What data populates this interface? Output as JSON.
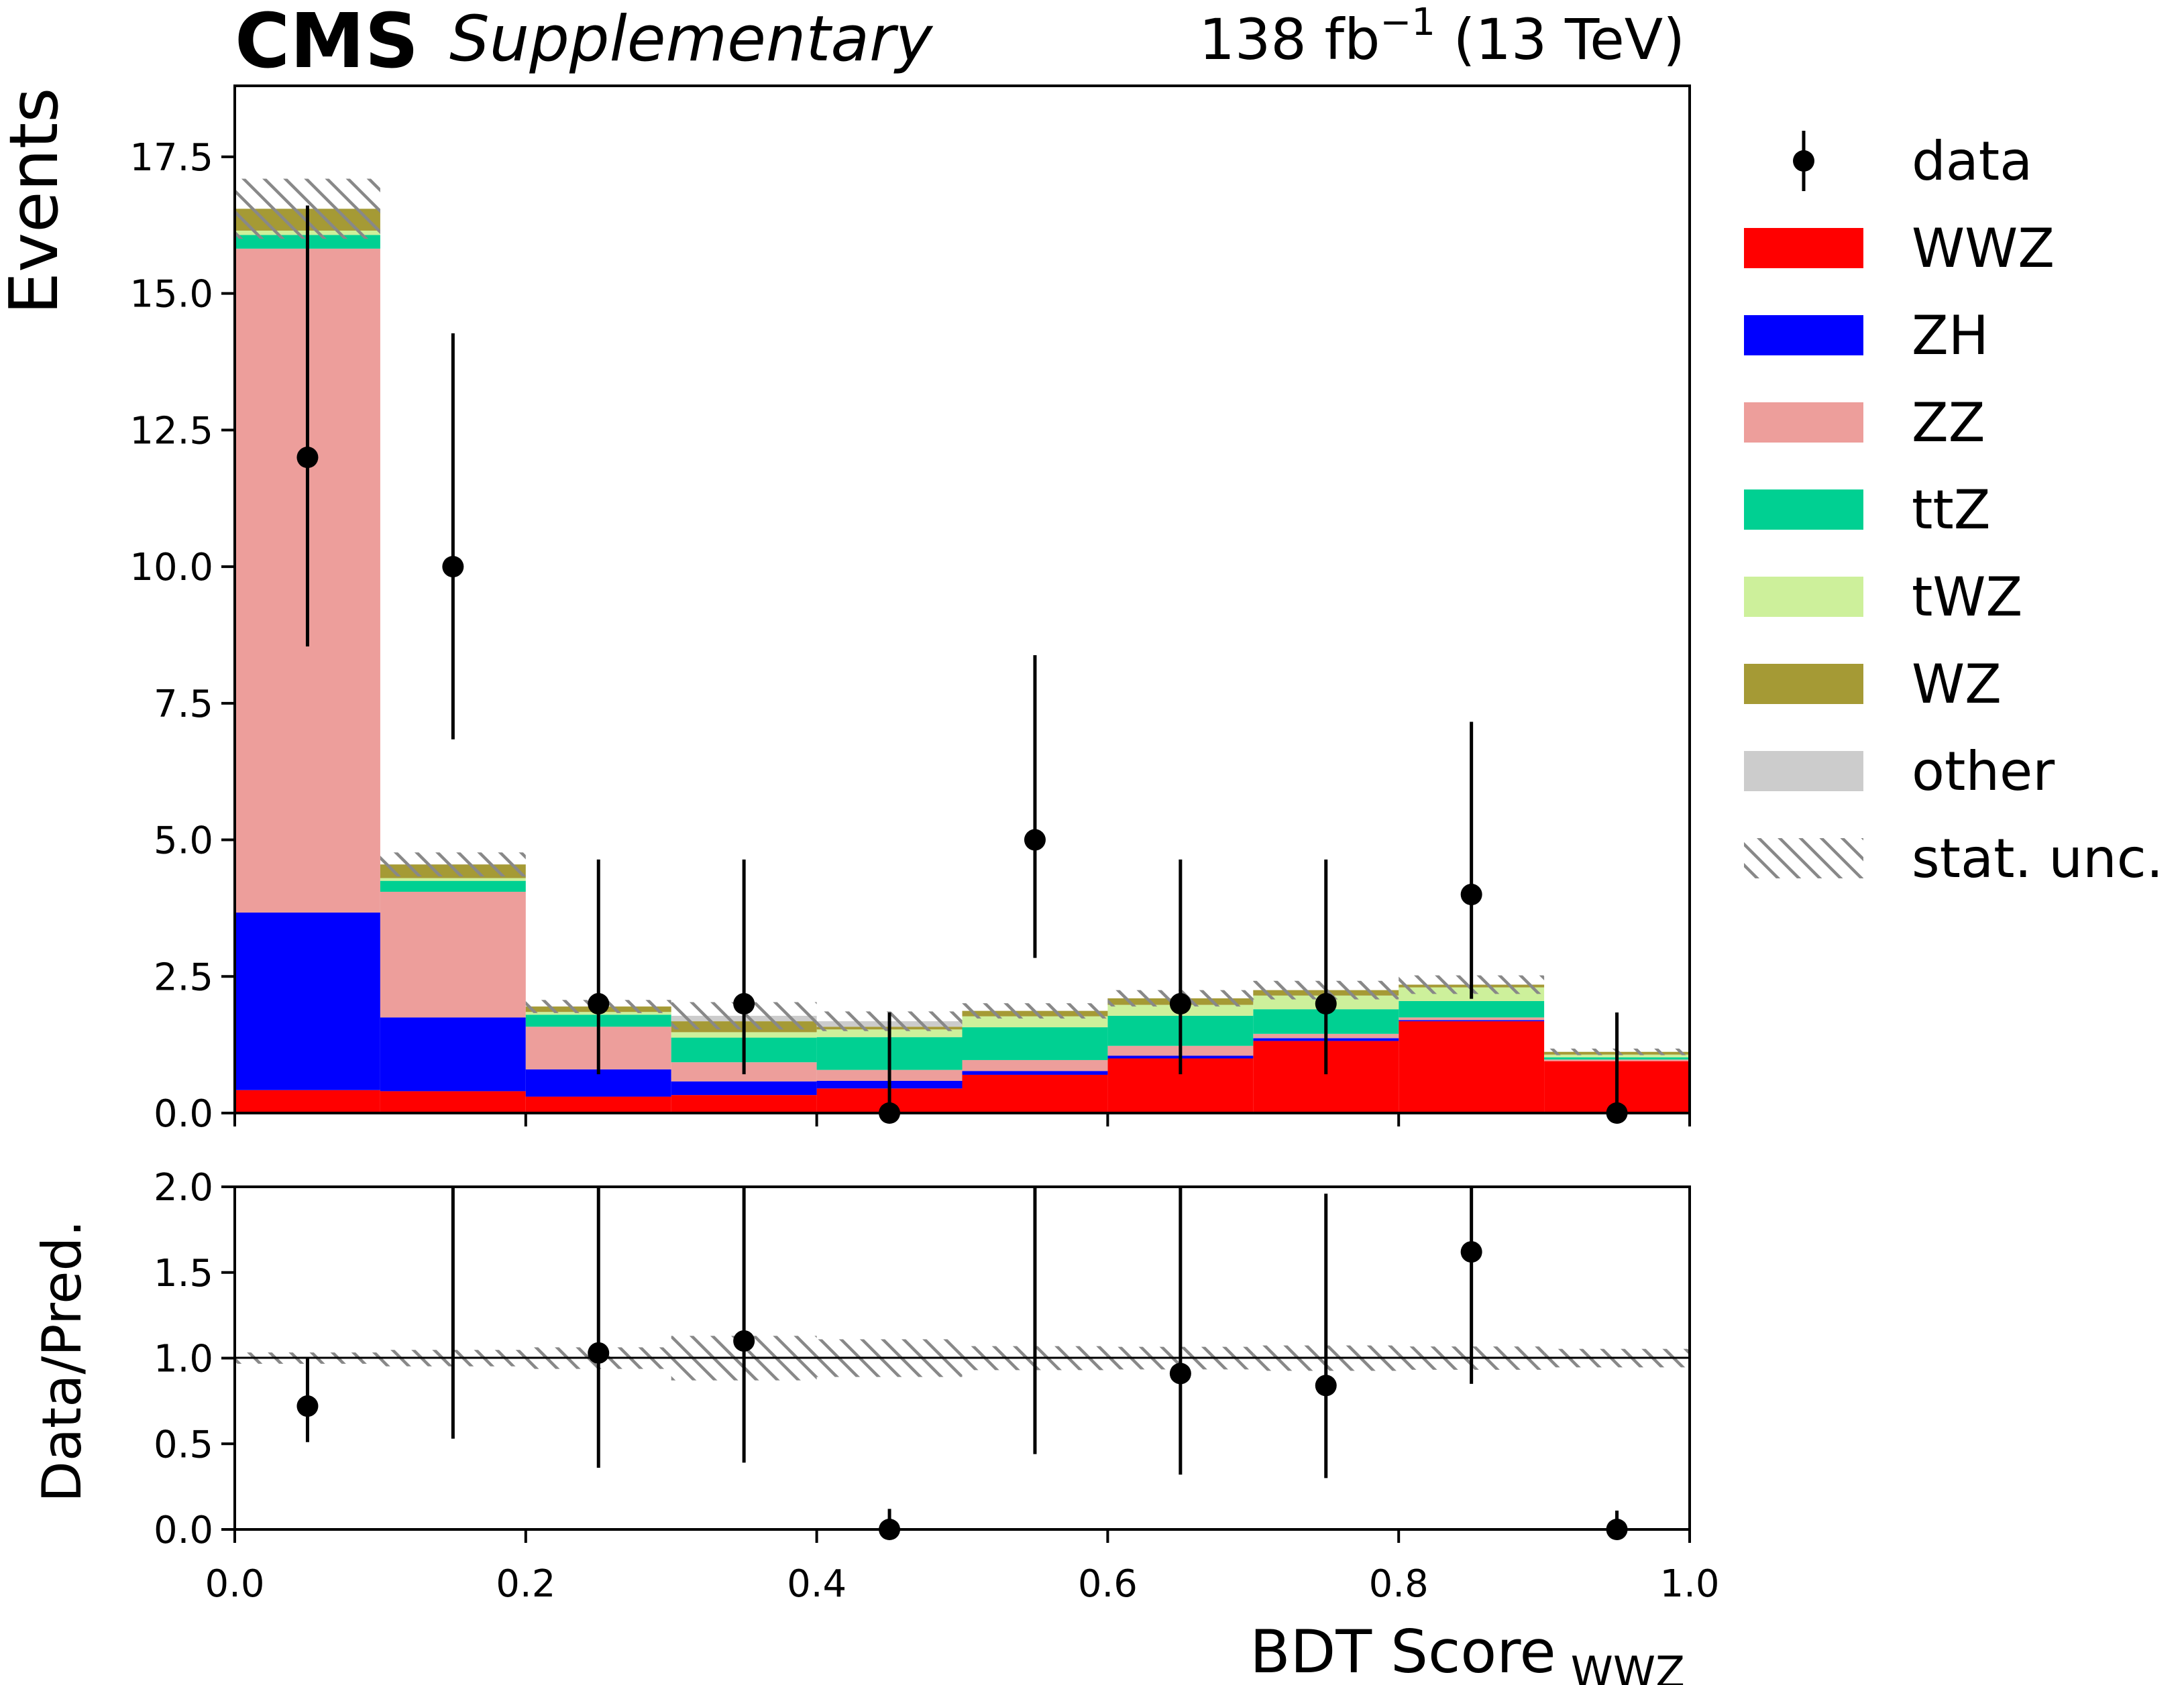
{
  "chart_data": {
    "type": "bar",
    "stacked": true,
    "experiment": "CMS",
    "label": "Supplementary",
    "lumi_label": {
      "prefix": "138 fb",
      "exponent": "−1",
      "suffix": " (13 TeV)"
    },
    "xlabel": {
      "main": "BDT Score",
      "sub": "WWZ"
    },
    "ylabel": "Events",
    "ratio_ylabel": "Data/Pred.",
    "xlim": [
      0.0,
      1.0
    ],
    "ylim": [
      0.0,
      18.8
    ],
    "ratio_ylim": [
      0.0,
      2.0
    ],
    "x_ticks": [
      "0.0",
      "0.2",
      "0.4",
      "0.6",
      "0.8",
      "1.0"
    ],
    "y_ticks": [
      "0.0",
      "2.5",
      "5.0",
      "7.5",
      "10.0",
      "12.5",
      "15.0",
      "17.5"
    ],
    "ratio_y_ticks": [
      "0.0",
      "0.5",
      "1.0",
      "1.5",
      "2.0"
    ],
    "bin_edges": [
      0.0,
      0.1,
      0.2,
      0.3,
      0.4,
      0.5,
      0.6,
      0.7,
      0.8,
      0.9,
      1.0
    ],
    "series": [
      {
        "name": "WWZ",
        "color": "#ff0000",
        "values": [
          0.42,
          0.4,
          0.3,
          0.33,
          0.45,
          0.7,
          1.0,
          1.32,
          1.68,
          0.95
        ]
      },
      {
        "name": "ZH",
        "color": "#0000ff",
        "values": [
          3.25,
          1.35,
          0.5,
          0.25,
          0.14,
          0.07,
          0.05,
          0.05,
          0.02,
          0.0
        ]
      },
      {
        "name": "ZZ",
        "color": "#ed9e9b",
        "values": [
          12.15,
          2.3,
          0.78,
          0.35,
          0.2,
          0.2,
          0.18,
          0.08,
          0.05,
          0.03
        ]
      },
      {
        "name": "ttZ",
        "color": "#00d092",
        "values": [
          0.25,
          0.2,
          0.22,
          0.45,
          0.6,
          0.6,
          0.55,
          0.45,
          0.3,
          0.04
        ]
      },
      {
        "name": "tWZ",
        "color": "#cdf09b",
        "values": [
          0.08,
          0.05,
          0.05,
          0.1,
          0.14,
          0.2,
          0.2,
          0.25,
          0.25,
          0.05
        ]
      },
      {
        "name": "WZ",
        "color": "#a59a35",
        "values": [
          0.4,
          0.25,
          0.1,
          0.2,
          0.05,
          0.1,
          0.12,
          0.1,
          0.05,
          0.05
        ]
      },
      {
        "name": "other",
        "color": "#cccccc",
        "values": [
          0.0,
          0.0,
          0.0,
          0.1,
          0.1,
          0.0,
          0.0,
          0.0,
          0.0,
          0.0
        ]
      }
    ],
    "stat_unc": [
      0.55,
      0.22,
      0.12,
      0.25,
      0.18,
      0.14,
      0.15,
      0.17,
      0.17,
      0.06
    ],
    "data": {
      "name": "data",
      "values": [
        12,
        10,
        2,
        2,
        0,
        5,
        2,
        2,
        4,
        0
      ],
      "err_low": [
        3.46,
        3.16,
        1.29,
        1.29,
        0.0,
        2.16,
        1.29,
        1.29,
        1.91,
        0.0
      ],
      "err_high": [
        4.61,
        4.27,
        2.64,
        2.64,
        1.84,
        3.38,
        2.64,
        2.64,
        3.16,
        1.84
      ]
    },
    "ratio": {
      "values": [
        0.72,
        null,
        1.03,
        1.1,
        0.0,
        null,
        0.91,
        0.84,
        1.62,
        0.0
      ],
      "err_low": [
        0.21,
        0.53,
        0.67,
        0.71,
        0.0,
        0.44,
        0.59,
        0.54,
        0.77,
        0.0
      ],
      "err_high": [
        0.28,
        1.47,
        1.37,
        1.45,
        0.12,
        0.56,
        1.21,
        1.12,
        1.25,
        0.11
      ],
      "unc_band": [
        0.033,
        0.048,
        0.063,
        0.13,
        0.11,
        0.07,
        0.066,
        0.074,
        0.068,
        0.054
      ]
    },
    "legend": {
      "position": "right",
      "entries": [
        {
          "label": "data",
          "kind": "marker"
        },
        {
          "label": "WWZ",
          "kind": "patch",
          "color": "#ff0000"
        },
        {
          "label": "ZH",
          "kind": "patch",
          "color": "#0000ff"
        },
        {
          "label": "ZZ",
          "kind": "patch",
          "color": "#ed9e9b"
        },
        {
          "label": "ttZ",
          "kind": "patch",
          "color": "#00d092"
        },
        {
          "label": "tWZ",
          "kind": "patch",
          "color": "#cdf09b"
        },
        {
          "label": "WZ",
          "kind": "patch",
          "color": "#a59a35"
        },
        {
          "label": "other",
          "kind": "patch",
          "color": "#cccccc"
        },
        {
          "label": "stat. unc.",
          "kind": "hatch"
        }
      ]
    }
  }
}
